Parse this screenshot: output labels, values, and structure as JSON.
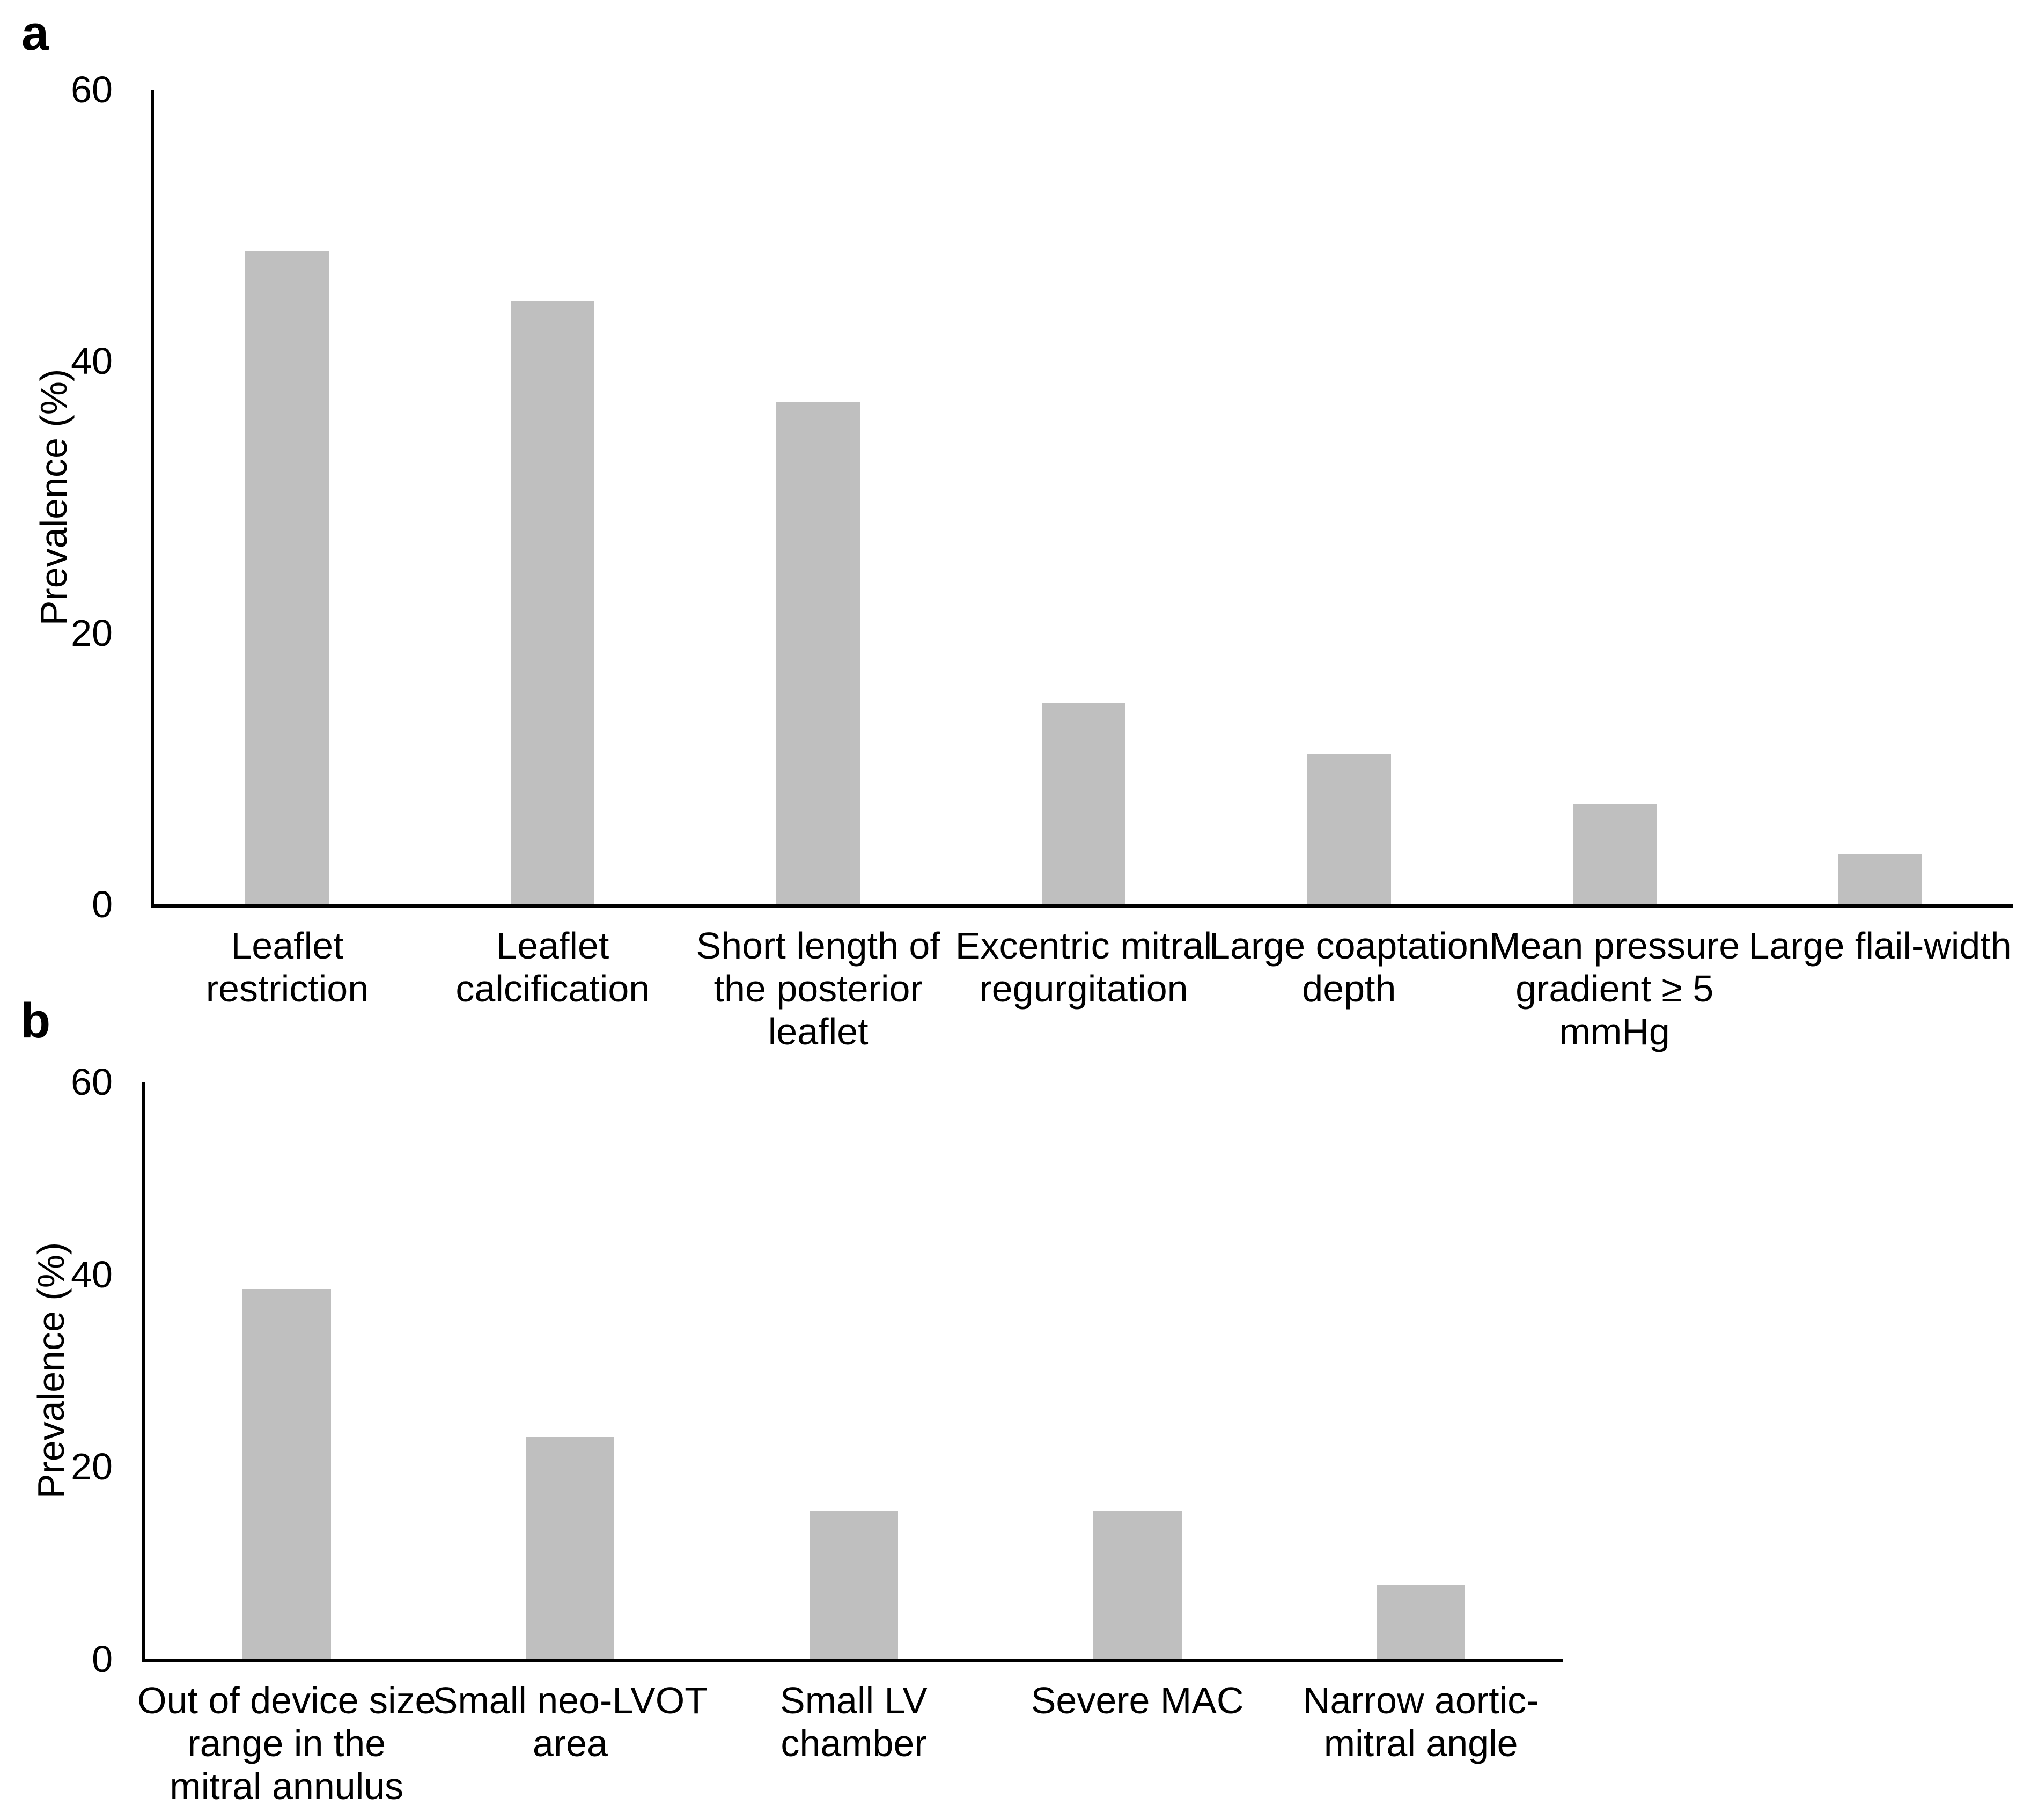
{
  "figure": {
    "background": "#ffffff"
  },
  "chart_data": [
    {
      "type": "bar",
      "panel_label": "a",
      "title": "",
      "xlabel": "",
      "ylabel": "Prevalence (%)",
      "ylim": [
        0,
        60
      ],
      "yticks": [
        0,
        20,
        40,
        60
      ],
      "grid": false,
      "legend_position": "none",
      "bar_color": "#bfbfbf",
      "axis_color": "#000000",
      "categories": [
        "Leaflet\nrestriction",
        "Leaflet\ncalcification",
        "Short length of\nthe posterior\nleaflet",
        "Excentric mitral\nregurgitation",
        "Large coaptation\ndepth",
        "Mean pressure\ngradient ≥ 5\nmmHg",
        "Large flail-width"
      ],
      "values": [
        48.1,
        44.4,
        37.0,
        14.8,
        11.1,
        7.4,
        3.7
      ]
    },
    {
      "type": "bar",
      "panel_label": "b",
      "title": "",
      "xlabel": "",
      "ylabel": "Prevalence (%)",
      "ylim": [
        0,
        60
      ],
      "yticks": [
        0,
        20,
        40,
        60
      ],
      "grid": false,
      "legend_position": "none",
      "bar_color": "#bfbfbf",
      "axis_color": "#000000",
      "categories": [
        "Out of device size\nrange in the\nmitral annulus",
        "Small neo-LVOT\narea",
        "Small LV\nchamber",
        "Severe MAC",
        "Narrow aortic-\nmitral angle"
      ],
      "values": [
        38.5,
        23.1,
        15.4,
        15.4,
        7.7
      ]
    }
  ]
}
